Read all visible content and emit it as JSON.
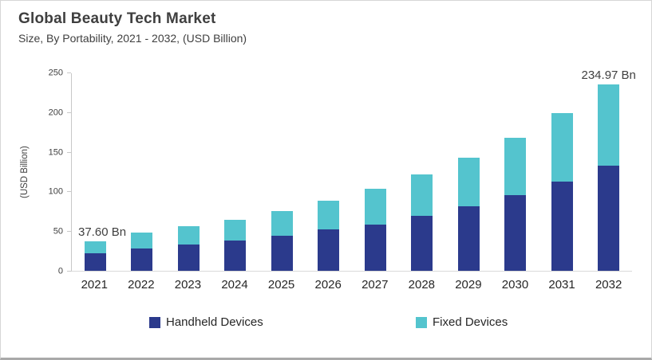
{
  "header": {
    "title": "Global Beauty Tech Market",
    "subtitle": "Size, By Portability, 2021 - 2032, (USD Billion)"
  },
  "chart_data": {
    "type": "bar",
    "stacked": true,
    "title": "Global Beauty Tech Market",
    "subtitle": "Size, By Portability, 2021 - 2032, (USD Billion)",
    "categories": [
      "2021",
      "2022",
      "2023",
      "2024",
      "2025",
      "2026",
      "2027",
      "2028",
      "2029",
      "2030",
      "2031",
      "2032"
    ],
    "series": [
      {
        "name": "Handheld Devices",
        "color": "#2b3a8c",
        "values": [
          22.2,
          28.3,
          33.0,
          38.6,
          44.3,
          51.9,
          58.7,
          69.4,
          81.8,
          95.2,
          112.5,
          132.5
        ]
      },
      {
        "name": "Fixed Devices",
        "color": "#54c4ce",
        "values": [
          15.4,
          19.7,
          23.3,
          25.9,
          30.8,
          36.1,
          44.5,
          51.8,
          60.8,
          72.2,
          86.8,
          102.47
        ]
      }
    ],
    "totals": [
      37.6,
      48.0,
      56.3,
      64.5,
      75.1,
      88.0,
      103.2,
      121.2,
      142.6,
      167.4,
      199.3,
      234.97
    ],
    "annotations": [
      {
        "category_index": 0,
        "text": "37.60 Bn",
        "anchor": "left"
      },
      {
        "category_index": 11,
        "text": "234.97 Bn",
        "anchor": "center"
      }
    ],
    "xlabel": "",
    "ylabel": "(USD Billion)",
    "yticks": [
      0,
      50,
      100,
      150,
      200,
      250
    ],
    "ylim": [
      0,
      250
    ],
    "grid": false,
    "legend_position": "bottom"
  },
  "legend": {
    "items": [
      {
        "label": "Handheld Devices",
        "color": "#2b3a8c"
      },
      {
        "label": "Fixed Devices",
        "color": "#54c4ce"
      }
    ]
  }
}
